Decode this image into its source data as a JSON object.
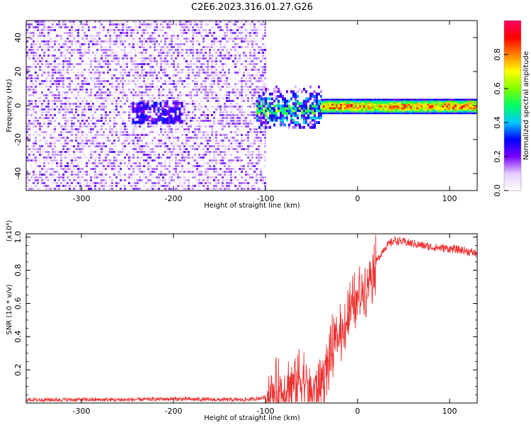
{
  "figure": {
    "title": "C2E6.2023.316.01.27.G26"
  },
  "chart_data": [
    {
      "type": "heatmap",
      "xlabel": "Height of straight line (km)",
      "ylabel": "Frequency (Hz)",
      "xlim": [
        -360,
        130
      ],
      "ylim": [
        -50,
        50
      ],
      "x_ticks": [
        -300,
        -200,
        -100,
        0,
        100
      ],
      "y_ticks": [
        -40,
        -20,
        0,
        20,
        40
      ],
      "colorbar": {
        "label": "Normalized spectral amplitude",
        "range": [
          0,
          1
        ],
        "ticks": [
          "0.0",
          "0.2",
          "0.4",
          "0.6",
          "0.8"
        ],
        "tick_values": [
          0,
          0.2,
          0.4,
          0.6,
          0.8
        ],
        "colormap": [
          "#ffffff",
          "#e6ccff",
          "#7a00ff",
          "#0000ff",
          "#00c8ff",
          "#00ff66",
          "#80ff00",
          "#ffff00",
          "#ff8000",
          "#ff0000",
          "#ff0066"
        ]
      },
      "noise_region": {
        "x_range": [
          -360,
          -100
        ],
        "freq_range": [
          -50,
          50
        ],
        "amplitude": 0.15
      },
      "transition_region": {
        "x_range": [
          -110,
          -40
        ],
        "freq_half_width": 12,
        "amplitude": 0.45
      },
      "signal_line": {
        "x_range": [
          -40,
          130
        ],
        "freq": [
          0.0,
          0.0
        ],
        "amplitude": 0.85,
        "freq_half_width": 3
      },
      "blob": {
        "x_range": [
          -245,
          -190
        ],
        "freq_center": -3,
        "freq_half_width": 6,
        "amplitude": 0.25
      }
    },
    {
      "type": "line",
      "xlabel": "Height of straight line (km)",
      "ylabel": "SNR (10 * v/v)",
      "y_multiplier": "(x10⁴)",
      "xlim": [
        -360,
        130
      ],
      "ylim": [
        0,
        1.02
      ],
      "x_ticks": [
        -300,
        -200,
        -100,
        0,
        100
      ],
      "y_ticks": [
        0.2,
        0.4,
        0.6,
        0.8,
        1.0
      ],
      "color": "#ee3333",
      "series": [
        {
          "x": [
            -360,
            -300,
            -250,
            -200,
            -150,
            -120,
            -105,
            -90,
            -80,
            -70,
            -60,
            -50,
            -40,
            -30,
            -20,
            -10,
            0,
            10,
            20,
            30,
            40,
            60,
            80,
            100,
            115,
            130
          ],
          "values": [
            0.02,
            0.02,
            0.02,
            0.025,
            0.02,
            0.02,
            0.03,
            0.05,
            0.08,
            0.12,
            0.15,
            0.06,
            0.12,
            0.28,
            0.4,
            0.52,
            0.62,
            0.73,
            0.85,
            0.94,
            0.98,
            0.96,
            0.94,
            0.93,
            0.92,
            0.9
          ]
        }
      ]
    }
  ]
}
